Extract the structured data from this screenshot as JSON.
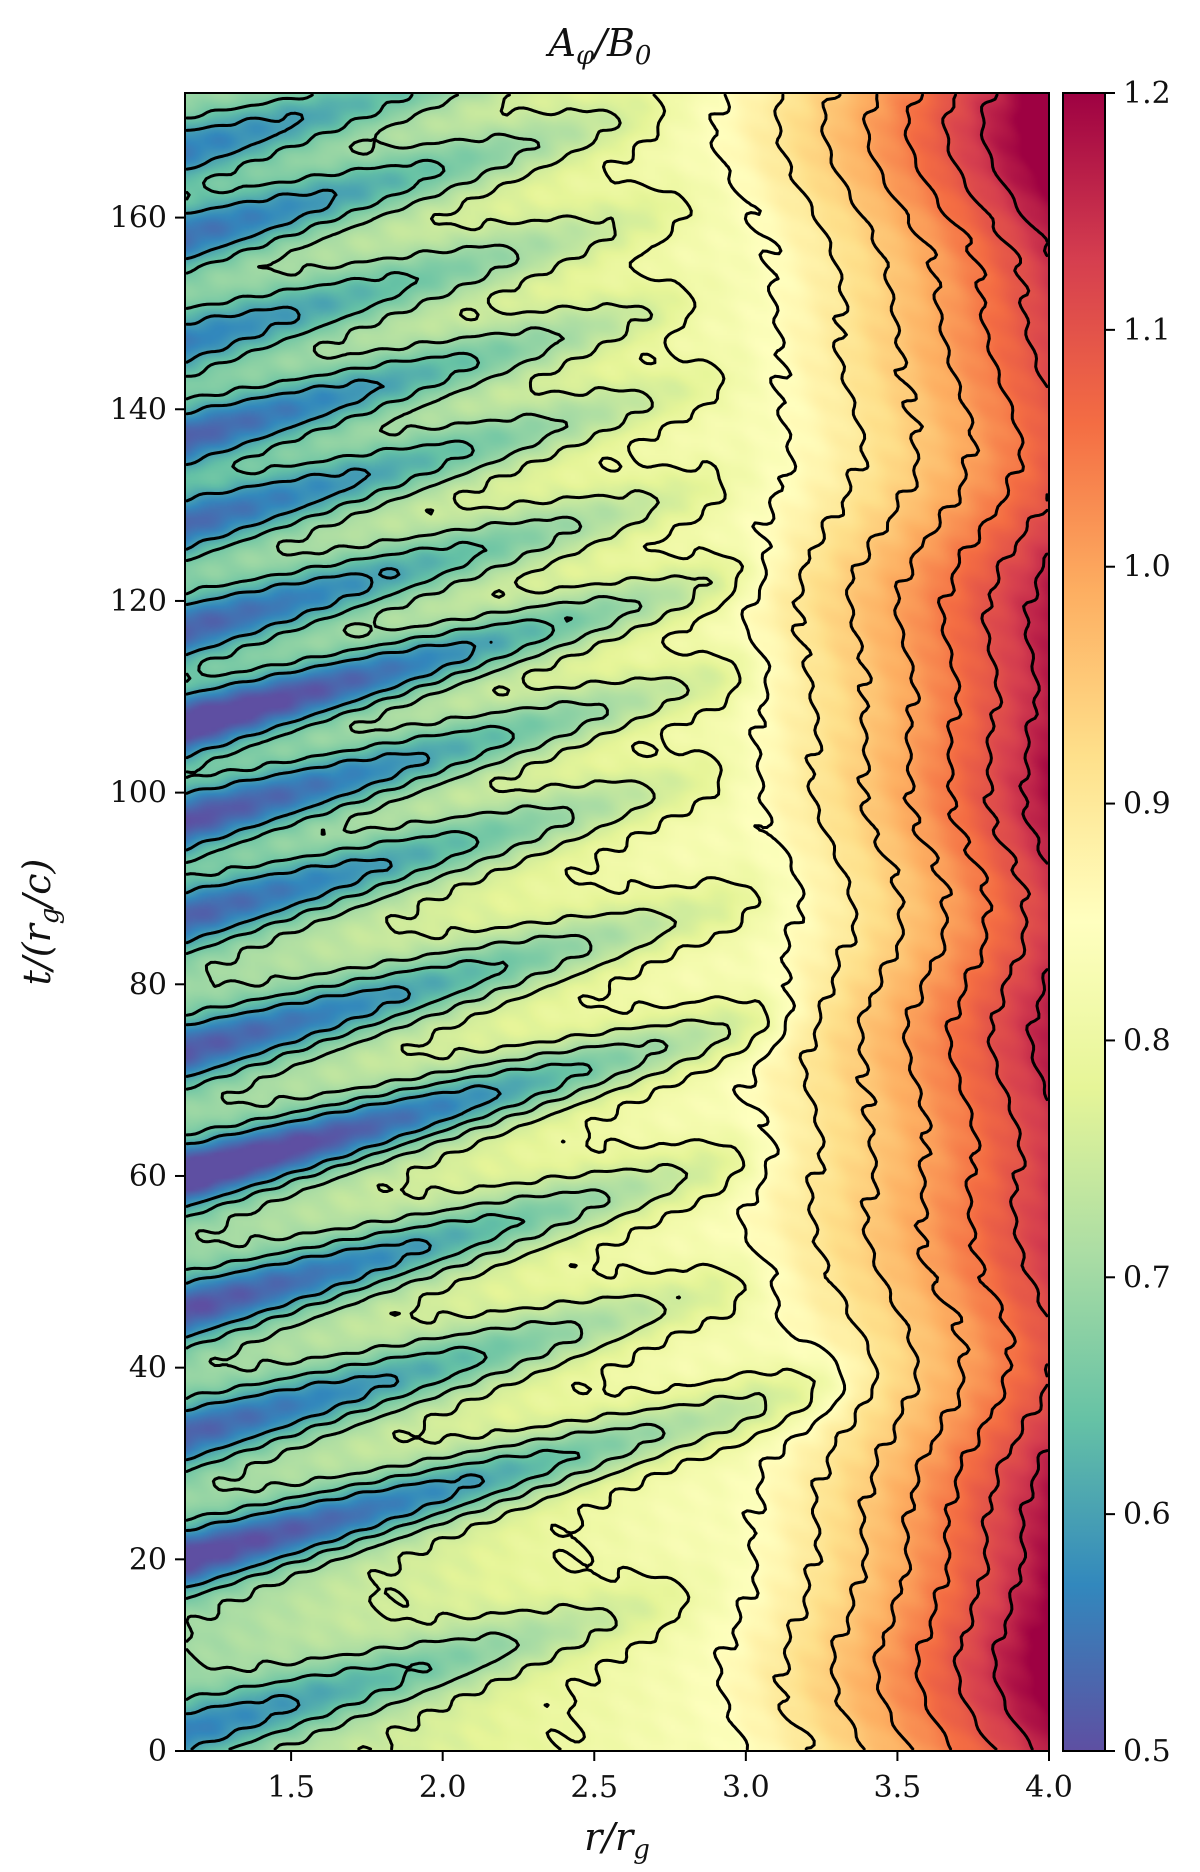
{
  "chart_data": {
    "type": "heatmap",
    "title": "A_φ/B_0",
    "title_parts": {
      "main": "A",
      "sub1": "φ",
      "mid": "/B",
      "sub2": "0"
    },
    "xlabel": "r/r_g",
    "xlabel_parts": {
      "main": "r/r",
      "sub": "g"
    },
    "ylabel": "t/(r_g/c)",
    "ylabel_parts": {
      "pre": "t/(r",
      "sub": "g",
      "post": "/c)"
    },
    "xlim": [
      1.15,
      4.0
    ],
    "ylim": [
      0,
      173
    ],
    "x_ticks": [
      1.5,
      2.0,
      2.5,
      3.0,
      3.5,
      4.0
    ],
    "x_tick_labels": [
      "1.5",
      "2.0",
      "2.5",
      "3.0",
      "3.5",
      "4.0"
    ],
    "y_ticks": [
      0,
      20,
      40,
      60,
      80,
      100,
      120,
      140,
      160
    ],
    "y_tick_labels": [
      "0",
      "20",
      "40",
      "60",
      "80",
      "100",
      "120",
      "140",
      "160"
    ],
    "colorbar": {
      "range": [
        0.5,
        1.2
      ],
      "ticks": [
        0.5,
        0.6,
        0.7,
        0.8,
        0.9,
        1.0,
        1.1,
        1.2
      ],
      "tick_labels": [
        "0.5",
        "0.6",
        "0.7",
        "0.8",
        "0.9",
        "1.0",
        "1.1",
        "1.2"
      ],
      "colormap": "Spectral_r",
      "colors": [
        "#5e4fa2",
        "#3288bd",
        "#66c2a5",
        "#abdda4",
        "#e6f598",
        "#ffffbf",
        "#fee08b",
        "#fdae61",
        "#f46d43",
        "#d53e4f",
        "#9e0142"
      ]
    },
    "contour_color": "#000000",
    "contour_levels": [
      0.6,
      0.65,
      0.7,
      0.75,
      0.8,
      0.85,
      0.9,
      0.95,
      1.0,
      1.05,
      1.1,
      1.15
    ],
    "field_model": {
      "description_values": "approximate field values estimated from the figure",
      "base_value": 0.83,
      "inner_radius_value": 0.7,
      "outer_gradient_start_r": 2.9,
      "outer_value_at_r4": 1.15,
      "band_times": [
        2,
        20,
        33,
        46,
        60,
        73,
        87,
        97,
        107,
        117,
        128,
        137,
        147,
        158,
        167
      ],
      "band_depths": [
        0.14,
        0.22,
        0.18,
        0.2,
        0.25,
        0.19,
        0.18,
        0.2,
        0.24,
        0.18,
        0.17,
        0.18,
        0.14,
        0.16,
        0.14
      ],
      "band_tilt": 8.5,
      "band_length_r": [
        2.7,
        3.2,
        2.9,
        2.9,
        3.0,
        2.9,
        2.8,
        2.9,
        2.9,
        2.8,
        2.8,
        2.7,
        2.7,
        2.6,
        2.6
      ]
    }
  }
}
